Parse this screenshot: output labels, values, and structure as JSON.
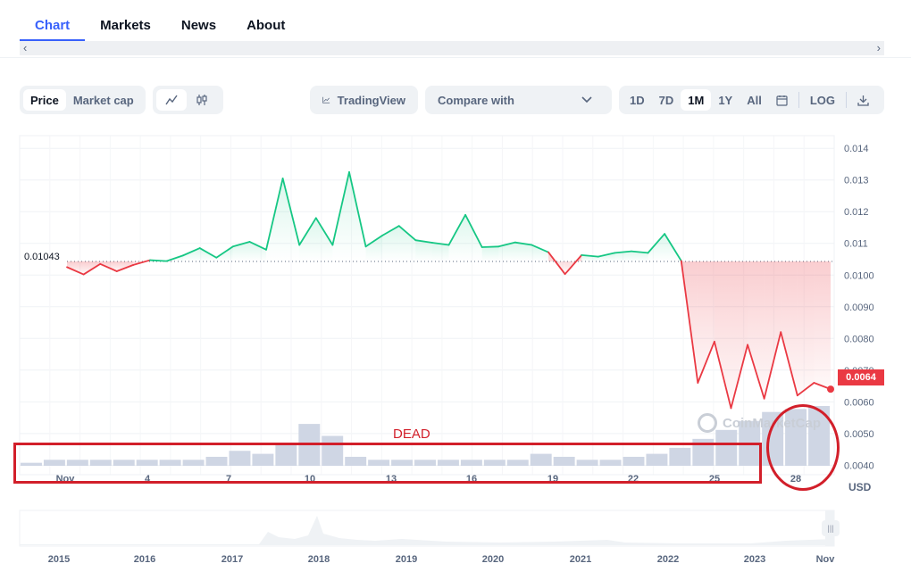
{
  "tabs": [
    {
      "label": "Chart",
      "active": true
    },
    {
      "label": "Markets",
      "active": false
    },
    {
      "label": "News",
      "active": false
    },
    {
      "label": "About",
      "active": false
    }
  ],
  "scrollbar": {
    "left_arrow": "‹",
    "right_arrow": "›"
  },
  "toolbar": {
    "mode_options": [
      {
        "label": "Price",
        "selected": true
      },
      {
        "label": "Market cap",
        "selected": false
      }
    ],
    "chart_type_icons": [
      "line-chart-icon",
      "candlestick-icon"
    ],
    "tradingview_label": "TradingView",
    "compare_label": "Compare with",
    "ranges": [
      {
        "label": "1D",
        "selected": false
      },
      {
        "label": "7D",
        "selected": false
      },
      {
        "label": "1M",
        "selected": true
      },
      {
        "label": "1Y",
        "selected": false
      },
      {
        "label": "All",
        "selected": false
      }
    ],
    "calendar_icon": "calendar-icon",
    "log_label": "LOG",
    "download_icon": "download-icon"
  },
  "chart": {
    "reference_price_label": "0.01043",
    "current_price_label": "0.0064",
    "currency_label": "USD",
    "watermark": "CoinMarketCap",
    "colors": {
      "up": "#16c784",
      "down": "#ea3943",
      "volume": "#cfd6e4",
      "grid": "#eff2f5"
    }
  },
  "annotations": {
    "dead_label": "DEAD"
  },
  "chart_data": {
    "type": "line",
    "series": [
      {
        "values": [
          0.01025,
          0.01002,
          0.01035,
          0.01012,
          0.01032,
          0.01047,
          0.01044,
          0.01062,
          0.01085,
          0.01055,
          0.0109,
          0.01105,
          0.0108,
          0.01305,
          0.01095,
          0.0118,
          0.01095,
          0.01325,
          0.0109,
          0.01125,
          0.01155,
          0.0111,
          0.01102,
          0.01095,
          0.0119,
          0.01088,
          0.0109,
          0.01103,
          0.01095,
          0.01072,
          0.01003,
          0.01063,
          0.01058,
          0.0107,
          0.01075,
          0.0107,
          0.0113,
          0.01045,
          0.0066,
          0.0079,
          0.0058,
          0.0078,
          0.0061,
          0.0082,
          0.0062,
          0.0066,
          0.0064
        ]
      }
    ],
    "reference_line": 0.01043,
    "y_ticks": [
      "0.014",
      "0.013",
      "0.012",
      "0.011",
      "0.0100",
      "0.0090",
      "0.0080",
      "0.0070",
      "0.0060",
      "0.0050",
      "0.0040"
    ],
    "y_tick_values": [
      0.014,
      0.013,
      0.012,
      0.011,
      0.01,
      0.009,
      0.008,
      0.007,
      0.006,
      0.005,
      0.004
    ],
    "ylim": [
      0.0037,
      0.0144
    ],
    "x_ticks": [
      "Nov",
      "4",
      "7",
      "10",
      "13",
      "16",
      "19",
      "22",
      "25",
      "28"
    ],
    "ylabel": "USD",
    "volume_level": [
      0.05,
      0.1,
      0.1,
      0.1,
      0.1,
      0.1,
      0.1,
      0.1,
      0.15,
      0.25,
      0.2,
      0.35,
      0.7,
      0.5,
      0.15,
      0.1,
      0.1,
      0.1,
      0.1,
      0.1,
      0.1,
      0.1,
      0.2,
      0.15,
      0.1,
      0.1,
      0.15,
      0.2,
      0.3,
      0.45,
      0.6,
      0.75,
      0.9,
      0.95,
      1.0
    ],
    "grid": true,
    "navigator": {
      "x_ticks": [
        "2015",
        "2016",
        "2017",
        "2018",
        "2019",
        "2020",
        "2021",
        "2022",
        "2023",
        "Nov"
      ]
    }
  }
}
